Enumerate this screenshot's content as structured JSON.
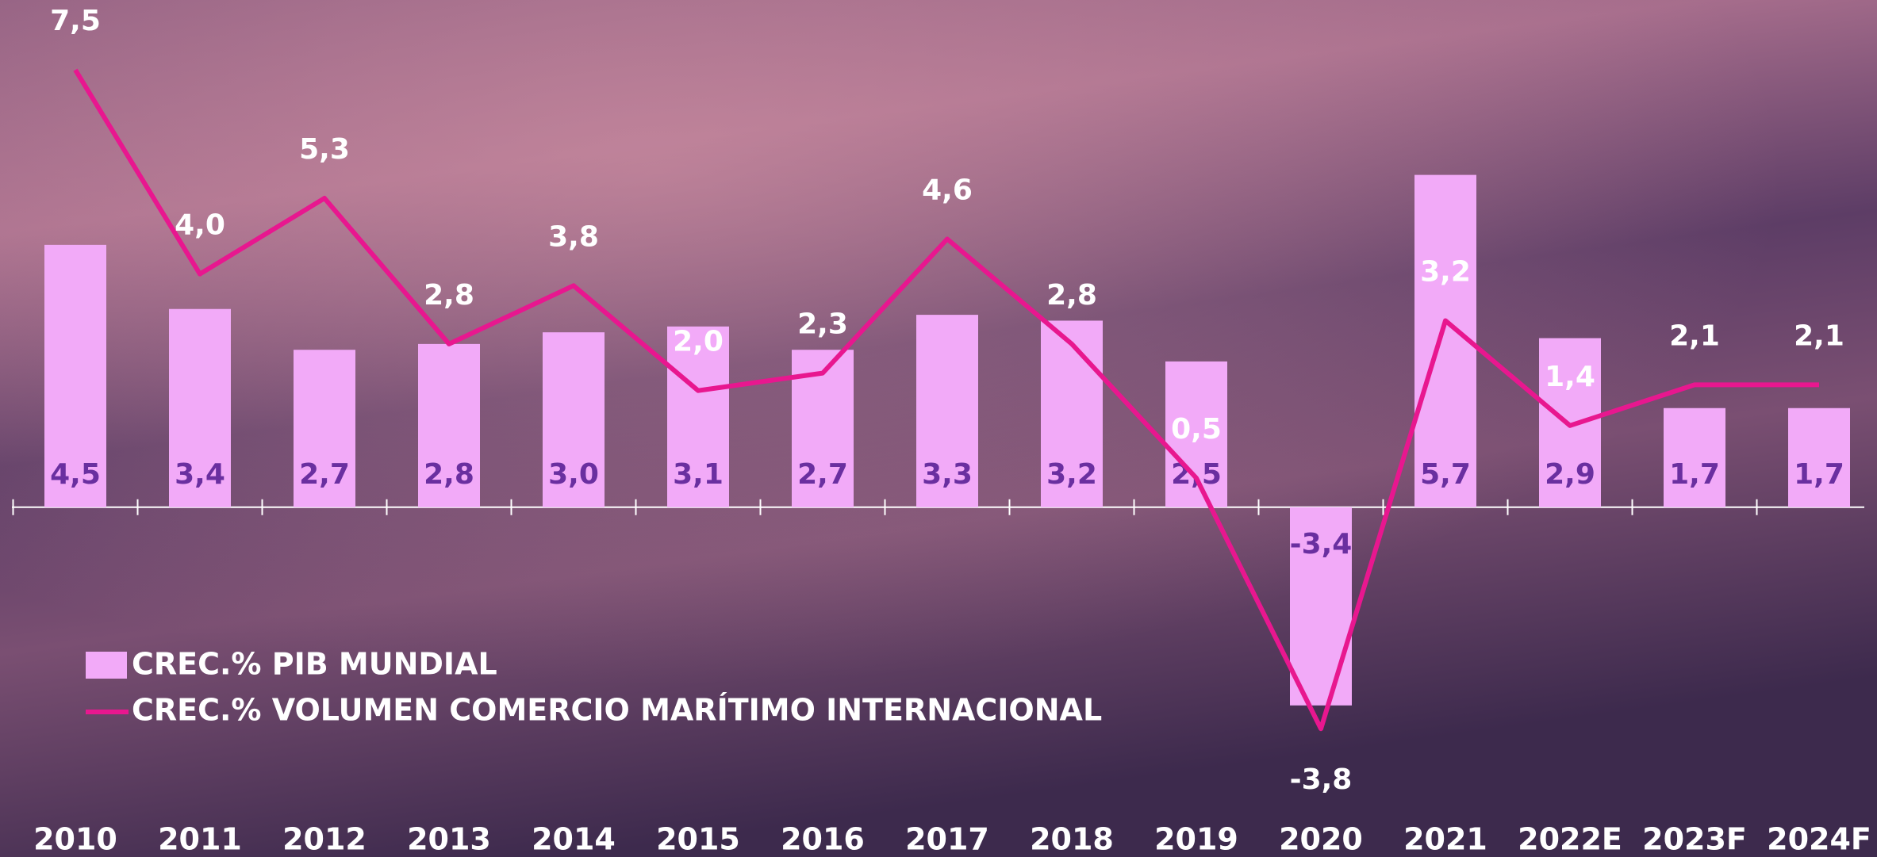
{
  "chart_data": {
    "type": "bar_line",
    "categories": [
      "2010",
      "2011",
      "2012",
      "2013",
      "2014",
      "2015",
      "2016",
      "2017",
      "2018",
      "2019",
      "2020",
      "2021",
      "2022E",
      "2023F",
      "2024F"
    ],
    "series": [
      {
        "name": "CREC.% PIB MUNDIAL",
        "type": "bar",
        "color": "#f2aaf8",
        "values": [
          4.5,
          3.4,
          2.7,
          2.8,
          3.0,
          3.1,
          2.7,
          3.3,
          3.2,
          2.5,
          -3.4,
          5.7,
          2.9,
          1.7,
          1.7
        ],
        "value_labels": [
          "4,5",
          "3,4",
          "2,7",
          "2,8",
          "3,0",
          "3,1",
          "2,7",
          "3,3",
          "3,2",
          "2,5",
          "-3,4",
          "5,7",
          "2,9",
          "1,7",
          "1,7"
        ]
      },
      {
        "name": "CREC.% VOLUMEN COMERCIO MARÍTIMO INTERNACIONAL",
        "type": "line",
        "color": "#e8178f",
        "values": [
          7.5,
          4.0,
          5.3,
          2.8,
          3.8,
          2.0,
          2.3,
          4.6,
          2.8,
          0.5,
          -3.8,
          3.2,
          1.4,
          2.1,
          2.1
        ],
        "value_labels": [
          "7,5",
          "4,0",
          "5,3",
          "2,8",
          "3,8",
          "2,0",
          "2,3",
          "4,6",
          "2,8",
          "0,5",
          "-3,8",
          "3,2",
          "1,4",
          "2,1",
          "2,1"
        ]
      }
    ],
    "ylim": [
      -6,
      8.7
    ]
  }
}
